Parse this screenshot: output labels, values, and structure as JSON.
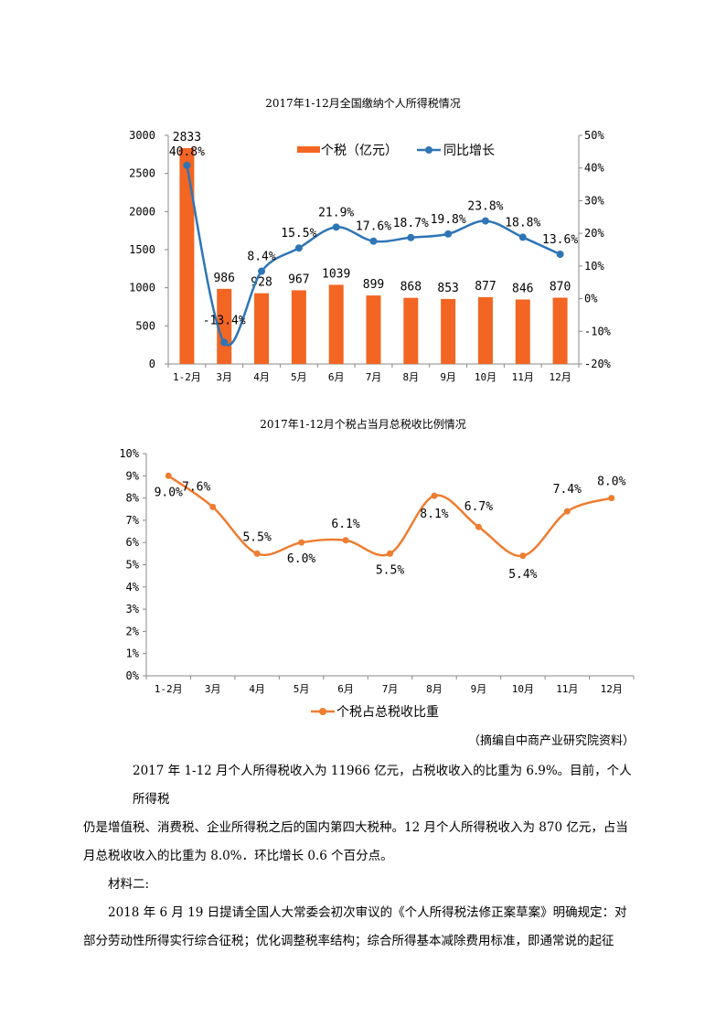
{
  "chart_data": [
    {
      "type": "bar+line",
      "title": "2017年1-12月全国缴纳个人所得税情况",
      "categories": [
        "1-2月",
        "3月",
        "4月",
        "5月",
        "6月",
        "7月",
        "8月",
        "9月",
        "10月",
        "11月",
        "12月"
      ],
      "series": [
        {
          "name": "个税（亿元）",
          "type": "bar",
          "axis": "left",
          "color": "#F26522",
          "values": [
            2833,
            986,
            928,
            967,
            1039,
            899,
            868,
            853,
            877,
            846,
            870
          ],
          "labels": [
            "2833",
            "986",
            "928",
            "967",
            "1039",
            "899",
            "868",
            "853",
            "877",
            "846",
            "870"
          ]
        },
        {
          "name": "同比增长",
          "type": "line",
          "axis": "right",
          "color": "#2E75B6",
          "values": [
            40.8,
            -13.4,
            8.4,
            15.5,
            21.9,
            17.6,
            18.7,
            19.8,
            23.8,
            18.8,
            13.6
          ],
          "labels": [
            "40.8%",
            "-13.4%",
            "8.4%",
            "15.5%",
            "21.9%",
            "17.6%",
            "18.7%",
            "19.8%",
            "23.8%",
            "18.8%",
            "13.6%"
          ]
        }
      ],
      "ylim_left": [
        0,
        3000
      ],
      "yticks_left": [
        "0",
        "500",
        "1000",
        "1500",
        "2000",
        "2500",
        "3000"
      ],
      "ylim_right": [
        -20,
        50
      ],
      "yticks_right": [
        "-20%",
        "-10%",
        "0%",
        "10%",
        "20%",
        "30%",
        "40%",
        "50%"
      ],
      "legend": "top-center",
      "grid": false
    },
    {
      "type": "line",
      "title": "2017年1-12月个税占当月总税收比例情况",
      "categories": [
        "1-2月",
        "3月",
        "4月",
        "5月",
        "6月",
        "7月",
        "8月",
        "9月",
        "10月",
        "11月",
        "12月"
      ],
      "series": [
        {
          "name": "个税占总税收比重",
          "color": "#ED7D31",
          "values": [
            9.0,
            7.6,
            5.5,
            6.0,
            6.1,
            5.5,
            8.1,
            6.7,
            5.4,
            7.4,
            8.0
          ],
          "labels": [
            "9.0%",
            "7.6%",
            "5.5%",
            "6.0%",
            "6.1%",
            "5.5%",
            "8.1%",
            "6.7%",
            "5.4%",
            "7.4%",
            "8.0%"
          ]
        }
      ],
      "ylim": [
        0,
        10
      ],
      "yticks": [
        "0%",
        "1%",
        "2%",
        "3%",
        "4%",
        "5%",
        "6%",
        "7%",
        "8%",
        "9%",
        "10%"
      ],
      "legend": "bottom",
      "grid": false
    }
  ],
  "text": {
    "source": "（摘编自中商产业研究院资料）",
    "p1a": "2017 年 1-12 月个人所得税收入为 11966 亿元，占税收收入的比重为 6.9%。目前，个人所得税",
    "p1b": "仍是增值税、消费税、企业所得税之后的国内第四大税种。12 月个人所得税收入为 870 亿元，占当",
    "p1c": "月总税收收入的比重为 8.0%．环比增长 0.6 个百分点。",
    "heading": "材料二:",
    "p2a": "2018 年 6 月 19 日提请全国人大常委会初次审议的《个人所得税法修正案草案》明确规定：对",
    "p2b": "部分劳动性所得实行综合征税；优化调整税率结构；综合所得基本减除费用标准，即通常说的起征"
  }
}
